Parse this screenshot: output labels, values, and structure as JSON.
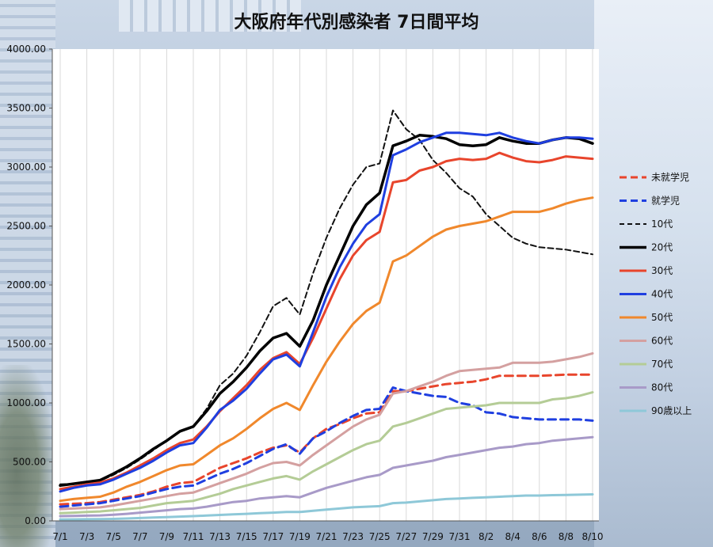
{
  "chart_data": {
    "type": "line",
    "title": "大阪府年代別感染者 7日間平均",
    "xlabel": "",
    "ylabel": "",
    "ylim": [
      0,
      4000
    ],
    "yticks": [
      "0.00",
      "500.00",
      "1000.00",
      "1500.00",
      "2000.00",
      "2500.00",
      "3000.00",
      "3500.00",
      "4000.00"
    ],
    "x": [
      "7/1",
      "7/2",
      "7/3",
      "7/4",
      "7/5",
      "7/6",
      "7/7",
      "7/8",
      "7/9",
      "7/10",
      "7/11",
      "7/12",
      "7/13",
      "7/14",
      "7/15",
      "7/16",
      "7/17",
      "7/18",
      "7/19",
      "7/20",
      "7/21",
      "7/22",
      "7/23",
      "7/24",
      "7/25",
      "7/26",
      "7/27",
      "7/28",
      "7/29",
      "7/30",
      "7/31",
      "8/1",
      "8/2",
      "8/3",
      "8/4",
      "8/5",
      "8/6",
      "8/7",
      "8/8",
      "8/9",
      "8/10"
    ],
    "xtick_labels": [
      "7/1",
      "7/3",
      "7/5",
      "7/7",
      "7/9",
      "7/11",
      "7/13",
      "7/15",
      "7/17",
      "7/19",
      "7/21",
      "7/23",
      "7/25",
      "7/27",
      "7/29",
      "7/31",
      "8/2",
      "8/4",
      "8/6",
      "8/8",
      "8/10"
    ],
    "grid": "vertical",
    "legend_position": "right",
    "series": [
      {
        "name": "未就学児",
        "color": "#e8452c",
        "dash": "dashed",
        "width": 3,
        "values": [
          140,
          145,
          150,
          160,
          180,
          200,
          220,
          250,
          290,
          320,
          330,
          390,
          450,
          490,
          530,
          580,
          620,
          640,
          580,
          700,
          780,
          820,
          870,
          910,
          920,
          1100,
          1100,
          1120,
          1140,
          1160,
          1170,
          1180,
          1200,
          1230,
          1230,
          1230,
          1230,
          1235,
          1240,
          1240,
          1240
        ]
      },
      {
        "name": "就学児",
        "color": "#1f3fe0",
        "dash": "dashed",
        "width": 3,
        "values": [
          120,
          130,
          140,
          150,
          170,
          190,
          210,
          240,
          270,
          290,
          300,
          350,
          400,
          440,
          490,
          550,
          610,
          650,
          570,
          700,
          760,
          830,
          890,
          940,
          950,
          1130,
          1100,
          1080,
          1060,
          1050,
          1000,
          980,
          920,
          910,
          880,
          870,
          860,
          860,
          860,
          860,
          850
        ]
      },
      {
        "name": "10代",
        "color": "#111111",
        "dash": "dashed",
        "width": 2,
        "values": [
          310,
          315,
          325,
          340,
          390,
          450,
          520,
          600,
          680,
          760,
          800,
          950,
          1150,
          1250,
          1400,
          1600,
          1820,
          1890,
          1750,
          2100,
          2400,
          2650,
          2850,
          3000,
          3030,
          3480,
          3320,
          3230,
          3060,
          2950,
          2820,
          2750,
          2600,
          2500,
          2400,
          2350,
          2320,
          2310,
          2300,
          2280,
          2260
        ]
      },
      {
        "name": "20代",
        "color": "#000000",
        "dash": "solid",
        "width": 3.5,
        "values": [
          300,
          315,
          330,
          345,
          400,
          460,
          530,
          610,
          680,
          760,
          800,
          930,
          1080,
          1180,
          1300,
          1440,
          1550,
          1590,
          1480,
          1700,
          2000,
          2250,
          2500,
          2680,
          2780,
          3180,
          3220,
          3270,
          3260,
          3240,
          3190,
          3180,
          3190,
          3250,
          3220,
          3200,
          3200,
          3230,
          3250,
          3240,
          3200
        ]
      },
      {
        "name": "30代",
        "color": "#e8452c",
        "dash": "solid",
        "width": 3,
        "values": [
          270,
          290,
          310,
          325,
          360,
          410,
          470,
          530,
          600,
          660,
          690,
          800,
          930,
          1040,
          1150,
          1280,
          1380,
          1430,
          1330,
          1550,
          1800,
          2050,
          2250,
          2380,
          2450,
          2870,
          2890,
          2970,
          3000,
          3050,
          3070,
          3060,
          3070,
          3120,
          3080,
          3050,
          3040,
          3060,
          3090,
          3080,
          3070
        ]
      },
      {
        "name": "40代",
        "color": "#1f3fe0",
        "dash": "solid",
        "width": 3,
        "values": [
          250,
          280,
          300,
          310,
          350,
          400,
          450,
          510,
          580,
          640,
          660,
          790,
          940,
          1020,
          1120,
          1250,
          1370,
          1410,
          1310,
          1600,
          1900,
          2150,
          2350,
          2510,
          2600,
          3100,
          3150,
          3210,
          3250,
          3290,
          3290,
          3280,
          3270,
          3290,
          3250,
          3220,
          3200,
          3230,
          3250,
          3250,
          3240
        ]
      },
      {
        "name": "50代",
        "color": "#f0882c",
        "dash": "solid",
        "width": 3,
        "values": [
          170,
          185,
          195,
          205,
          240,
          290,
          330,
          380,
          430,
          470,
          480,
          560,
          640,
          700,
          780,
          870,
          950,
          1000,
          940,
          1150,
          1350,
          1520,
          1670,
          1780,
          1850,
          2200,
          2250,
          2330,
          2410,
          2470,
          2500,
          2520,
          2540,
          2580,
          2620,
          2620,
          2620,
          2650,
          2690,
          2720,
          2740
        ]
      },
      {
        "name": "60代",
        "color": "#d4a0a0",
        "dash": "solid",
        "width": 3,
        "values": [
          100,
          105,
          110,
          115,
          130,
          150,
          170,
          190,
          210,
          230,
          240,
          280,
          320,
          360,
          400,
          450,
          490,
          500,
          470,
          560,
          640,
          720,
          800,
          860,
          900,
          1080,
          1100,
          1140,
          1180,
          1230,
          1270,
          1280,
          1290,
          1300,
          1340,
          1340,
          1340,
          1350,
          1370,
          1390,
          1420
        ]
      },
      {
        "name": "70代",
        "color": "#b4cc96",
        "dash": "solid",
        "width": 3,
        "values": [
          65,
          70,
          75,
          80,
          90,
          100,
          110,
          130,
          150,
          160,
          170,
          200,
          230,
          270,
          300,
          330,
          360,
          380,
          350,
          420,
          480,
          540,
          600,
          650,
          680,
          800,
          830,
          870,
          910,
          950,
          960,
          970,
          980,
          1000,
          1000,
          1000,
          1000,
          1030,
          1040,
          1060,
          1090
        ]
      },
      {
        "name": "80代",
        "color": "#a89ac8",
        "dash": "solid",
        "width": 3,
        "values": [
          40,
          42,
          44,
          46,
          52,
          60,
          70,
          80,
          90,
          100,
          105,
          120,
          140,
          160,
          170,
          190,
          200,
          210,
          200,
          240,
          280,
          310,
          340,
          370,
          390,
          450,
          470,
          490,
          510,
          540,
          560,
          580,
          600,
          620,
          630,
          650,
          660,
          680,
          690,
          700,
          710
        ]
      },
      {
        "name": "90歳以上",
        "color": "#8ec8d8",
        "dash": "solid",
        "width": 3,
        "values": [
          12,
          13,
          14,
          15,
          17,
          20,
          24,
          28,
          32,
          36,
          40,
          45,
          50,
          55,
          60,
          65,
          70,
          75,
          75,
          85,
          95,
          105,
          115,
          120,
          125,
          150,
          155,
          165,
          175,
          185,
          190,
          195,
          200,
          205,
          210,
          215,
          215,
          218,
          220,
          222,
          225
        ]
      }
    ]
  }
}
